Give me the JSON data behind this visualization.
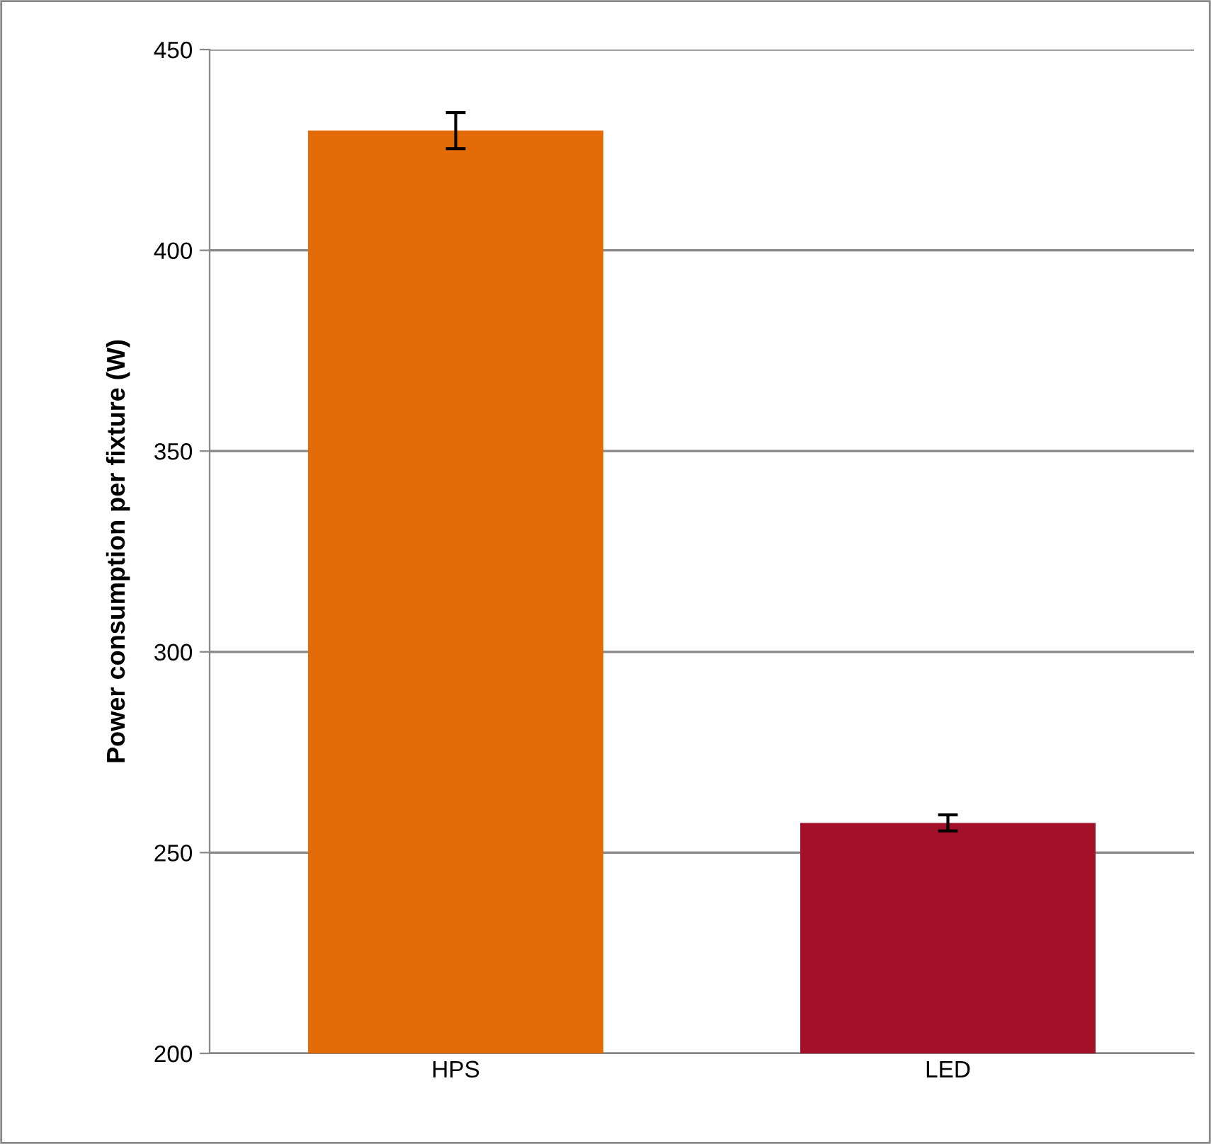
{
  "chart_data": {
    "type": "bar",
    "ylabel": "Power consumption per fixture (W)",
    "categories": [
      "HPS",
      "LED"
    ],
    "values": [
      429.8,
      257.4
    ],
    "errors": [
      4.5,
      2
    ],
    "colors": [
      "#e36c09",
      "#a3102a"
    ],
    "ylim": [
      200,
      450
    ],
    "yticks": [
      200,
      250,
      300,
      350,
      400,
      450
    ],
    "grid": "y"
  }
}
